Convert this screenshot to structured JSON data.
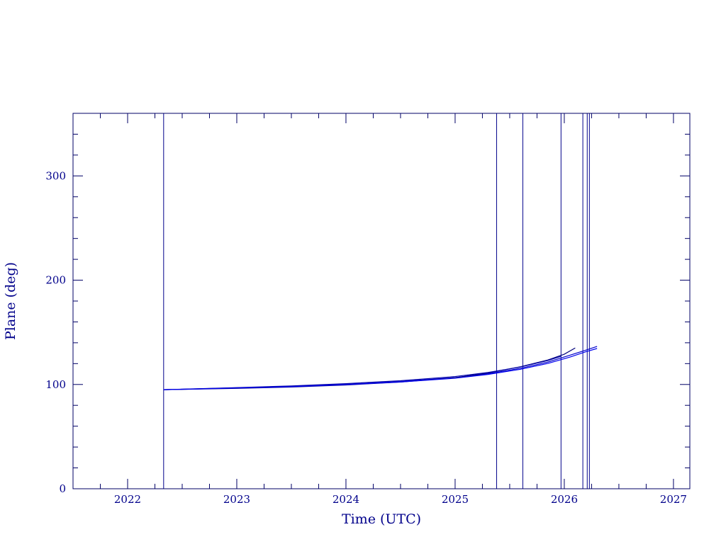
{
  "chart_data": {
    "type": "line",
    "title": "",
    "xlabel": "Time (UTC)",
    "ylabel": "Plane (deg)",
    "xlim": [
      2021.5,
      2027.15
    ],
    "ylim": [
      0,
      360
    ],
    "xticks": [
      2022,
      2023,
      2024,
      2025,
      2026,
      2027
    ],
    "xtick_labels": [
      "2022",
      "2023",
      "2024",
      "2025",
      "2026",
      "2027"
    ],
    "yticks": [
      0,
      100,
      200,
      300
    ],
    "ytick_labels": [
      "0",
      "100",
      "200",
      "300"
    ],
    "x_minor_step": 0.25,
    "y_minor_step": 20,
    "grid": false,
    "vertical_markers": [
      2022.33,
      2025.38,
      2025.62,
      2025.97,
      2026.17,
      2026.21,
      2026.23
    ],
    "series": [
      {
        "color": "#0000cc",
        "points": [
          [
            2022.33,
            95
          ],
          [
            2022.6,
            95.7
          ],
          [
            2023.0,
            96.8
          ],
          [
            2023.5,
            98.1
          ],
          [
            2024.0,
            100.0
          ],
          [
            2024.5,
            102.8
          ],
          [
            2025.0,
            106.6
          ],
          [
            2025.3,
            110.3
          ],
          [
            2025.6,
            115.5
          ],
          [
            2025.85,
            121.5
          ],
          [
            2026.05,
            128.0
          ],
          [
            2026.2,
            133.0
          ],
          [
            2026.3,
            136.5
          ]
        ]
      },
      {
        "color": "#00007a",
        "points": [
          [
            2022.33,
            95
          ],
          [
            2022.6,
            95.5
          ],
          [
            2023.0,
            96.3
          ],
          [
            2023.5,
            97.5
          ],
          [
            2024.0,
            99.5
          ],
          [
            2024.5,
            102.3
          ],
          [
            2025.0,
            106.5
          ],
          [
            2025.3,
            111.0
          ],
          [
            2025.6,
            117.0
          ],
          [
            2025.85,
            123.5
          ],
          [
            2026.0,
            129.0
          ],
          [
            2026.1,
            135.0
          ]
        ]
      },
      {
        "color": "#0000aa",
        "points": [
          [
            2022.33,
            95
          ],
          [
            2022.6,
            95.8
          ],
          [
            2023.0,
            97.0
          ],
          [
            2023.5,
            98.6
          ],
          [
            2024.0,
            100.8
          ],
          [
            2024.5,
            103.6
          ],
          [
            2025.0,
            107.6
          ],
          [
            2025.3,
            111.5
          ],
          [
            2025.6,
            116.8
          ],
          [
            2025.85,
            123.0
          ],
          [
            2025.97,
            127.0
          ]
        ]
      },
      {
        "color": "#0000ee",
        "points": [
          [
            2022.33,
            95
          ],
          [
            2022.6,
            95.6
          ],
          [
            2023.0,
            96.6
          ],
          [
            2023.5,
            97.9
          ],
          [
            2024.0,
            99.8
          ],
          [
            2024.5,
            102.4
          ],
          [
            2025.0,
            106.0
          ],
          [
            2025.3,
            109.6
          ],
          [
            2025.6,
            114.6
          ],
          [
            2025.85,
            120.2
          ],
          [
            2026.05,
            126.2
          ],
          [
            2026.2,
            131.5
          ],
          [
            2026.3,
            134.5
          ]
        ]
      }
    ]
  },
  "colors": {
    "axes": "#000066",
    "text": "#00008b",
    "marker_lines": "#00008b"
  }
}
